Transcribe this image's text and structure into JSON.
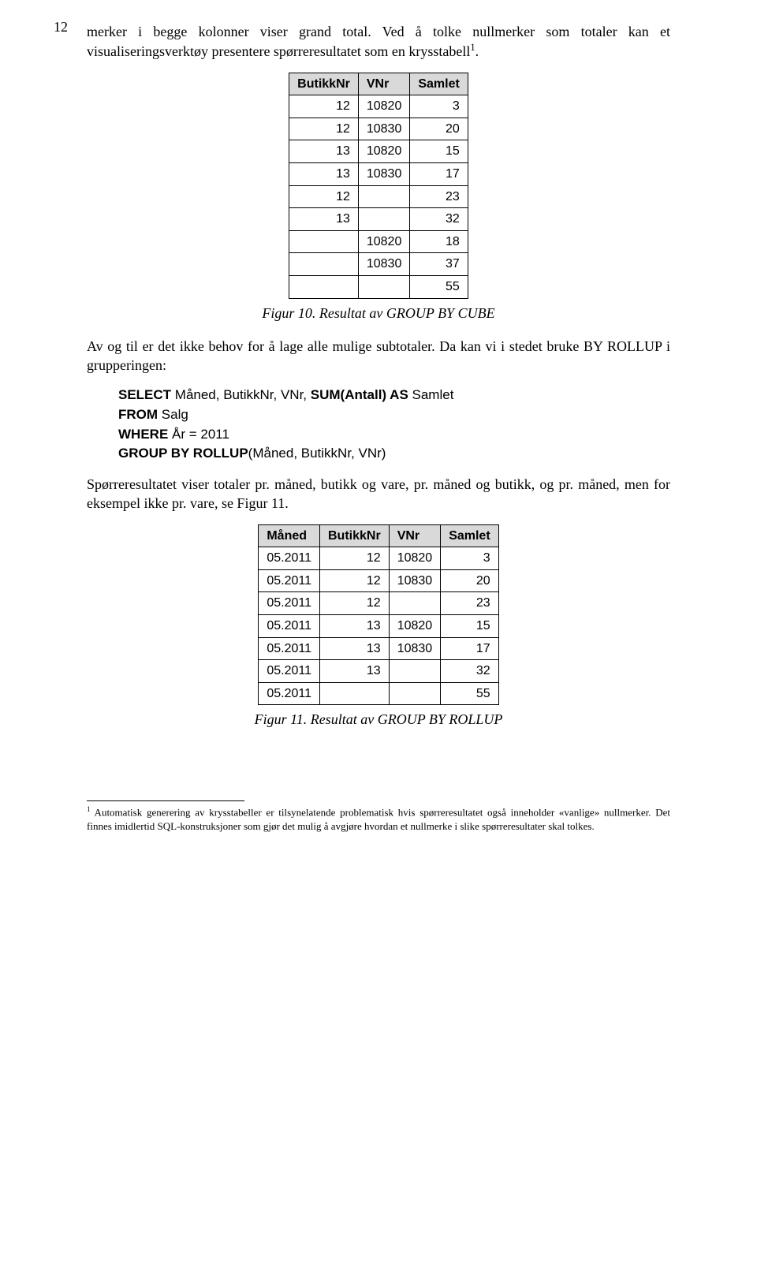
{
  "page_number": "12",
  "para1": "merker i begge kolonner viser grand total. Ved å tolke nullmerker som totaler kan et visualiseringsverktøy presentere spørreresultatet som en krysstabell",
  "footref1": "1",
  "para1_end": ".",
  "table1": {
    "columns": [
      "ButikkNr",
      "VNr",
      "Samlet"
    ],
    "rows": [
      [
        "12",
        "10820",
        "3"
      ],
      [
        "12",
        "10830",
        "20"
      ],
      [
        "13",
        "10820",
        "15"
      ],
      [
        "13",
        "10830",
        "17"
      ],
      [
        "12",
        "",
        "23"
      ],
      [
        "13",
        "",
        "32"
      ],
      [
        "",
        "10820",
        "18"
      ],
      [
        "",
        "10830",
        "37"
      ],
      [
        "",
        "",
        "55"
      ]
    ]
  },
  "caption1": "Figur 10. Resultat av GROUP BY CUBE",
  "para2": "Av og til er det ikke behov for å lage alle mulige subtotaler. Da kan vi i stedet bruke BY ROLLUP i grupperingen:",
  "code1": {
    "l1a": "SELECT",
    "l1b": " Måned, ButikkNr, VNr, ",
    "l1c": "SUM(Antall) AS",
    "l1d": " Samlet",
    "l2a": "FROM",
    "l2b": " Salg",
    "l3a": "WHERE",
    "l3b": " År = 2011",
    "l4a": "GROUP BY ROLLUP",
    "l4b": "(Måned, ButikkNr, VNr)"
  },
  "para3": "Spørreresultatet viser totaler pr. måned, butikk og vare, pr. måned og butikk, og pr. måned, men for eksempel ikke pr. vare, se Figur 11.",
  "table2": {
    "columns": [
      "Måned",
      "ButikkNr",
      "VNr",
      "Samlet"
    ],
    "rows": [
      [
        "05.2011",
        "12",
        "10820",
        "3"
      ],
      [
        "05.2011",
        "12",
        "10830",
        "20"
      ],
      [
        "05.2011",
        "12",
        "",
        "23"
      ],
      [
        "05.2011",
        "13",
        "10820",
        "15"
      ],
      [
        "05.2011",
        "13",
        "10830",
        "17"
      ],
      [
        "05.2011",
        "13",
        "",
        "32"
      ],
      [
        "05.2011",
        "",
        "",
        "55"
      ]
    ]
  },
  "caption2": "Figur 11. Resultat av GROUP BY ROLLUP",
  "footnote_marker": "1",
  "footnote_text": " Automatisk generering av krysstabeller er tilsynelatende problematisk hvis spørreresultatet også inneholder «vanlige» nullmerker. Det finnes imidlertid SQL-konstruksjoner som gjør det mulig å avgjøre hvordan et nullmerke i slike spørreresultater skal tolkes."
}
